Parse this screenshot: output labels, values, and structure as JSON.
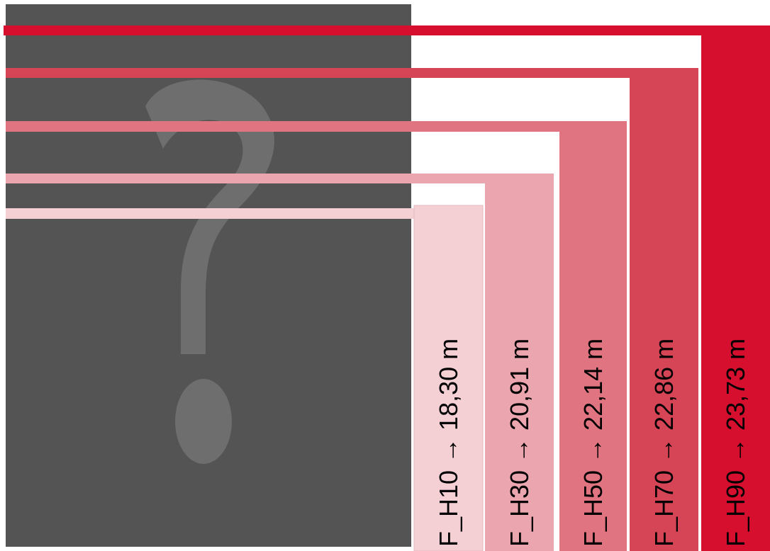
{
  "bars": [
    "F_H10 → 18,30 m",
    "F_H30 → 20,91 m",
    "F_H50 → 22,14 m",
    "F_H70 → 22,86 m",
    "F_H90 → 23,73 m"
  ]
}
